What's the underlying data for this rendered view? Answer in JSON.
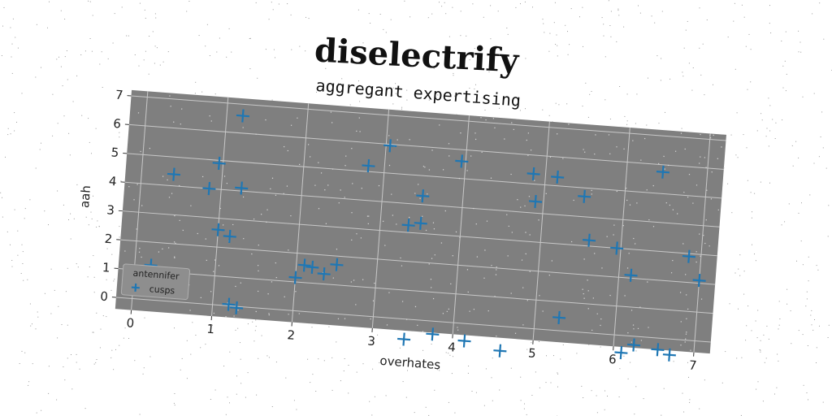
{
  "chart_data": {
    "type": "scatter",
    "title": "diselectrify",
    "subtitle": "aggregant expertising",
    "xlabel": "overhates",
    "ylabel": "aah",
    "xlim": [
      -0.2,
      7.2
    ],
    "ylim": [
      -0.4,
      7.2
    ],
    "xticks": [
      0,
      1,
      2,
      3,
      4,
      5,
      6,
      7
    ],
    "yticks": [
      0,
      1,
      2,
      3,
      4,
      5,
      6,
      7
    ],
    "grid": true,
    "legend": {
      "title": "antennifer",
      "placement": "lower-left"
    },
    "colors": {
      "plot_background": "#7f7f7f",
      "marker": "#1f77b4"
    },
    "series": [
      {
        "name": "cusps",
        "marker": "plus",
        "points": [
          [
            0.2,
            1.2
          ],
          [
            0.4,
            4.4
          ],
          [
            0.85,
            4.0
          ],
          [
            0.95,
            4.9
          ],
          [
            1.0,
            2.6
          ],
          [
            1.15,
            2.4
          ],
          [
            1.2,
            6.6
          ],
          [
            1.25,
            4.1
          ],
          [
            1.2,
            0.05
          ],
          [
            1.3,
            -0.05
          ],
          [
            2.0,
            1.15
          ],
          [
            2.1,
            1.6
          ],
          [
            2.2,
            1.55
          ],
          [
            2.35,
            1.35
          ],
          [
            2.5,
            1.7
          ],
          [
            2.8,
            5.2
          ],
          [
            3.05,
            5.95
          ],
          [
            3.35,
            3.25
          ],
          [
            3.5,
            3.35
          ],
          [
            3.5,
            4.3
          ],
          [
            3.4,
            -0.7
          ],
          [
            3.75,
            -0.45
          ],
          [
            3.95,
            5.6
          ],
          [
            4.15,
            -0.6
          ],
          [
            4.6,
            -0.85
          ],
          [
            4.85,
            5.35
          ],
          [
            4.9,
            4.4
          ],
          [
            5.15,
            5.3
          ],
          [
            5.3,
            0.45
          ],
          [
            5.5,
            4.7
          ],
          [
            5.6,
            3.2
          ],
          [
            5.95,
            3.0
          ],
          [
            6.1,
            -0.6
          ],
          [
            6.15,
            2.1
          ],
          [
            6.25,
            -0.3
          ],
          [
            6.45,
            5.75
          ],
          [
            6.55,
            -0.4
          ],
          [
            6.7,
            -0.55
          ],
          [
            6.85,
            2.9
          ],
          [
            7.0,
            2.1
          ]
        ]
      }
    ]
  }
}
